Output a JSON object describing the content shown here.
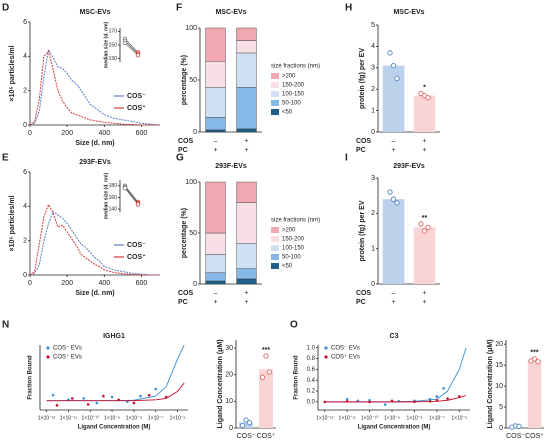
{
  "chart_data": [
    {
      "type": "line",
      "panel_label": "D",
      "title": "MSC-EVs",
      "xlabel": "Size (d. nm)",
      "ylabel": "×10⁵ particles/ml",
      "x": [
        0,
        25,
        50,
        75,
        100,
        125,
        150,
        175,
        200,
        225,
        250,
        275,
        300,
        325,
        350,
        375,
        400,
        450,
        500,
        550,
        600,
        650,
        700
      ],
      "series": [
        {
          "name": "COS⁻",
          "color": "#5b80c4",
          "values": [
            0,
            0.1,
            0.8,
            2.8,
            4.4,
            3.9,
            3.4,
            3.3,
            3.0,
            2.6,
            2.4,
            2.0,
            1.6,
            1.2,
            1.0,
            0.8,
            0.6,
            0.4,
            0.3,
            0.2,
            0.1,
            0.05,
            0
          ]
        },
        {
          "name": "COS⁺",
          "color": "#d63a3a",
          "values": [
            0,
            0.2,
            1.5,
            4.0,
            4.3,
            3.2,
            2.0,
            1.4,
            1.0,
            0.7,
            0.6,
            0.5,
            0.4,
            0.3,
            0.25,
            0.2,
            0.15,
            0.1,
            0.05,
            0.03,
            0,
            0,
            0
          ]
        }
      ],
      "xlim": [
        0,
        700
      ],
      "xticks": [
        0,
        200,
        400,
        600
      ],
      "ylim": [
        0,
        6
      ],
      "yticks": [
        0,
        2,
        4,
        6
      ]
    },
    {
      "type": "paired",
      "ylabel": "median size (d. nm)",
      "colors": [
        "#777777",
        "#d63a3a"
      ],
      "pairs": [
        [
          159,
          139
        ],
        [
          156,
          137
        ],
        [
          153,
          135
        ]
      ],
      "ylim": [
        125,
        175
      ],
      "yticks": [
        130,
        150,
        170
      ]
    },
    {
      "type": "stacked_bar",
      "panel_label": "F",
      "title": "MSC-EVs",
      "ylabel": "percentage (%)",
      "legend_title": "size fractions (nm)",
      "series": [
        {
          "name": "<50",
          "color": "#1f5f8b",
          "values": [
            2,
            3
          ]
        },
        {
          "name": "50-100",
          "color": "#86b9e8",
          "values": [
            12,
            40
          ]
        },
        {
          "name": "100-150",
          "color": "#cfe0f3",
          "values": [
            29,
            33
          ]
        },
        {
          "name": "150-200",
          "color": "#f8dfe5",
          "values": [
            25,
            12
          ]
        },
        {
          "name": ">200",
          "color": "#f2a8b1",
          "values": [
            32,
            12
          ]
        }
      ],
      "ylim": [
        0,
        100
      ],
      "yticks": [
        0,
        50,
        100
      ],
      "conditions": [
        {
          "label": "COS",
          "values": [
            "–",
            "+"
          ]
        },
        {
          "label": "PC",
          "values": [
            "+",
            "+"
          ]
        }
      ]
    },
    {
      "type": "bar",
      "panel_label": "H",
      "title": "MSC-EVs",
      "ylabel": "protein (fg) per EV",
      "values": [
        3.1,
        1.7
      ],
      "points": [
        [
          3.7,
          3.1,
          2.5
        ],
        [
          1.8,
          1.7,
          1.6
        ]
      ],
      "colors": [
        "#bcd1ea",
        "#f9d4d4"
      ],
      "point_colors": [
        "#4f86c6",
        "#e06666"
      ],
      "ylim": [
        0,
        5
      ],
      "yticks": [
        0,
        1,
        2,
        3,
        4,
        5
      ],
      "annotation": "*",
      "conditions": [
        {
          "label": "COS",
          "values": [
            "–",
            "+"
          ]
        },
        {
          "label": "PC",
          "values": [
            "+",
            "+"
          ]
        }
      ]
    },
    {
      "type": "line",
      "panel_label": "E",
      "title": "293F-EVs",
      "xlabel": "Size (d. nm)",
      "ylabel": "×10⁵ particles/ml",
      "x": [
        0,
        25,
        50,
        75,
        100,
        125,
        150,
        175,
        200,
        225,
        250,
        275,
        300,
        325,
        350,
        375,
        400,
        450,
        500,
        550,
        600,
        650,
        700
      ],
      "series": [
        {
          "name": "COS⁻",
          "color": "#5b80c4",
          "values": [
            0,
            0.1,
            0.6,
            2.0,
            3.0,
            3.7,
            3.5,
            3.3,
            3.0,
            2.6,
            2.2,
            1.8,
            1.6,
            1.3,
            1.0,
            0.8,
            0.5,
            0.3,
            0.2,
            0.1,
            0.05,
            0,
            0
          ]
        },
        {
          "name": "COS⁺",
          "color": "#d63a3a",
          "values": [
            0,
            0.2,
            1.8,
            3.4,
            4.1,
            3.6,
            2.8,
            2.9,
            2.5,
            2.1,
            1.7,
            1.2,
            1.0,
            0.8,
            0.6,
            0.5,
            0.3,
            0.15,
            0.08,
            0.03,
            0,
            0,
            0
          ]
        }
      ],
      "xlim": [
        0,
        700
      ],
      "xticks": [
        0,
        200,
        400,
        600
      ],
      "ylim": [
        0,
        6
      ],
      "yticks": [
        0,
        2,
        4,
        6
      ]
    },
    {
      "type": "paired",
      "ylabel": "median size (d. nm)",
      "colors": [
        "#777777",
        "#d63a3a"
      ],
      "pairs": [
        [
          180,
          152
        ],
        [
          178,
          150
        ],
        [
          176,
          148
        ]
      ],
      "ylim": [
        135,
        190
      ],
      "yticks": [
        140,
        160,
        180
      ]
    },
    {
      "type": "stacked_bar",
      "panel_label": "G",
      "title": "293F-EVs",
      "ylabel": "percentage (%)",
      "legend_title": "size fractions (nm)",
      "series": [
        {
          "name": "<50",
          "color": "#1f5f8b",
          "values": [
            3,
            5
          ]
        },
        {
          "name": "50-100",
          "color": "#86b9e8",
          "values": [
            8,
            10
          ]
        },
        {
          "name": "100-150",
          "color": "#cfe0f3",
          "values": [
            18,
            25
          ]
        },
        {
          "name": "150-200",
          "color": "#f8dfe5",
          "values": [
            21,
            40
          ]
        },
        {
          "name": ">200",
          "color": "#f2a8b1",
          "values": [
            50,
            20
          ]
        }
      ],
      "ylim": [
        0,
        100
      ],
      "yticks": [
        0,
        50,
        100
      ],
      "conditions": [
        {
          "label": "COS",
          "values": [
            "–",
            "+"
          ]
        },
        {
          "label": "PC",
          "values": [
            "+",
            "+"
          ]
        }
      ]
    },
    {
      "type": "bar",
      "panel_label": "I",
      "title": "293F-EVs",
      "ylabel": "protein (fg) per EV",
      "values": [
        2.4,
        1.6
      ],
      "points": [
        [
          2.6,
          2.4,
          2.3
        ],
        [
          1.7,
          1.5,
          1.6
        ]
      ],
      "colors": [
        "#bcd1ea",
        "#f9d4d4"
      ],
      "point_colors": [
        "#4f86c6",
        "#e06666"
      ],
      "ylim": [
        0,
        3
      ],
      "yticks": [
        0,
        1,
        2,
        3
      ],
      "annotation": "**",
      "conditions": [
        {
          "label": "COS",
          "values": [
            "–",
            "+"
          ]
        },
        {
          "label": "PC",
          "values": [
            "+",
            "+"
          ]
        }
      ]
    },
    {
      "type": "scatter",
      "panel_label": "N",
      "title": "IGHG1",
      "xlabel": "Ligand Concentration (M)",
      "ylabel": "Fraction Bound",
      "log_x": true,
      "xlim": [
        5e-13,
        3e-06
      ],
      "xticks": [
        {
          "value": 1e-12,
          "label": "1×10⁻¹²"
        },
        {
          "value": 1e-11,
          "label": "1×10⁻¹¹"
        },
        {
          "value": 1e-10,
          "label": "1×10⁻¹⁰"
        },
        {
          "value": 1e-09,
          "label": "1×10⁻⁹"
        },
        {
          "value": 1e-08,
          "label": "1×10⁻⁸"
        },
        {
          "value": 1e-07,
          "label": "1×10⁻⁷"
        },
        {
          "value": 1e-06,
          "label": "1×10⁻⁶"
        }
      ],
      "ylim": [
        -0.2,
        1.2
      ],
      "fit_x": [
        1e-12,
        1e-11,
        1e-10,
        1e-09,
        1e-08,
        1e-07,
        3e-07,
        1e-06,
        2e-06
      ],
      "series": [
        {
          "name": "COS⁻ EVs",
          "color": "#3b8fd0",
          "x": [
            2e-12,
            1e-11,
            5e-11,
            2e-10,
            1e-09,
            5e-09,
            2e-08,
            1e-07
          ],
          "values": [
            0.12,
            0.02,
            0.05,
            -0.05,
            0.08,
            -0.02,
            0.1,
            0.25
          ],
          "fit": [
            0,
            0,
            0,
            0,
            0.01,
            0.1,
            0.3,
            0.9,
            1.2
          ]
        },
        {
          "name": "COS⁺ EVs",
          "color": "#c8102e",
          "x": [
            3e-12,
            1.5e-11,
            8e-11,
            4e-10,
            2e-09,
            1e-08,
            5e-08,
            3e-07
          ],
          "values": [
            -0.1,
            0.05,
            -0.08,
            0.1,
            0.02,
            -0.05,
            0.12,
            0.08
          ],
          "fit": [
            0,
            0,
            0,
            0,
            0,
            0.02,
            0.05,
            0.2,
            0.38
          ]
        }
      ]
    },
    {
      "type": "bar",
      "ylabel": "Ligand Concentration (μM)",
      "categories": [
        "COS⁻",
        "COS⁺"
      ],
      "values": [
        2,
        22
      ],
      "points": [
        [
          1,
          3,
          2
        ],
        [
          19,
          27,
          21
        ]
      ],
      "colors": [
        "#bcd1ea",
        "#f9d4d4"
      ],
      "point_colors": [
        "#4f86c6",
        "#e06666"
      ],
      "ylim": [
        0,
        33
      ],
      "yticks": [
        0,
        10,
        20,
        30
      ],
      "annotation": "***"
    },
    {
      "type": "scatter",
      "panel_label": "O",
      "title": "C3",
      "xlabel": "Ligand Concentration (M)",
      "ylabel": "Fraction Bound",
      "log_x": true,
      "xlim": [
        5e-13,
        3e-06
      ],
      "xticks": [
        {
          "value": 1e-12,
          "label": "1×10⁻¹²"
        },
        {
          "value": 1e-11,
          "label": "1×10⁻¹¹"
        },
        {
          "value": 1e-10,
          "label": "1×10⁻¹⁰"
        },
        {
          "value": 1e-09,
          "label": "1×10⁻⁹"
        },
        {
          "value": 1e-08,
          "label": "1×10⁻⁸"
        },
        {
          "value": 1e-07,
          "label": "1×10⁻⁷"
        },
        {
          "value": 1e-06,
          "label": "1×10⁻⁶"
        }
      ],
      "ylim": [
        -0.15,
        1.05
      ],
      "yticks": [
        {
          "value": 0,
          "label": "0.0"
        },
        0.2,
        0.4,
        0.6,
        0.8,
        {
          "value": 1,
          "label": "1.0"
        }
      ],
      "fit_x": [
        1e-12,
        1e-11,
        1e-10,
        1e-09,
        1e-08,
        1e-07,
        3e-07,
        1e-06,
        2e-06
      ],
      "series": [
        {
          "name": "COS⁻ EVs",
          "color": "#3b8fd0",
          "x": [
            1e-11,
            3e-11,
            1e-10,
            5e-10,
            2e-09,
            1e-08,
            5e-08,
            1e-07,
            2e-07
          ],
          "values": [
            0.05,
            0.02,
            0.03,
            -0.05,
            0.01,
            0.02,
            0.05,
            0.1,
            0.25
          ],
          "fit": [
            0,
            0,
            0,
            0,
            0.01,
            0.05,
            0.2,
            0.6,
            1.0
          ]
        },
        {
          "name": "COS⁺ EVs",
          "color": "#c8102e",
          "x": [
            1e-12,
            1e-11,
            1e-10,
            1e-09,
            1e-08,
            5e-08,
            1e-07,
            3e-07,
            1e-06
          ],
          "values": [
            0,
            0.01,
            0,
            0.02,
            0,
            0.01,
            0.03,
            0.06,
            0.1
          ],
          "fit": [
            0,
            0,
            0,
            0,
            0,
            0.01,
            0.03,
            0.08,
            0.12
          ]
        }
      ]
    },
    {
      "type": "bar",
      "ylabel": "Ligand Concentration (μM)",
      "categories": [
        "COS⁻",
        "COS⁺"
      ],
      "values": [
        0.4,
        16.2
      ],
      "points": [
        [
          0.2,
          0.5,
          0.4
        ],
        [
          16,
          16.5,
          15.8
        ]
      ],
      "colors": [
        "#bcd1ea",
        "#f9d4d4"
      ],
      "point_colors": [
        "#4f86c6",
        "#e06666"
      ],
      "ylim": [
        0,
        21
      ],
      "yticks": [
        0,
        5,
        10,
        15,
        20
      ],
      "annotation": "***"
    }
  ]
}
